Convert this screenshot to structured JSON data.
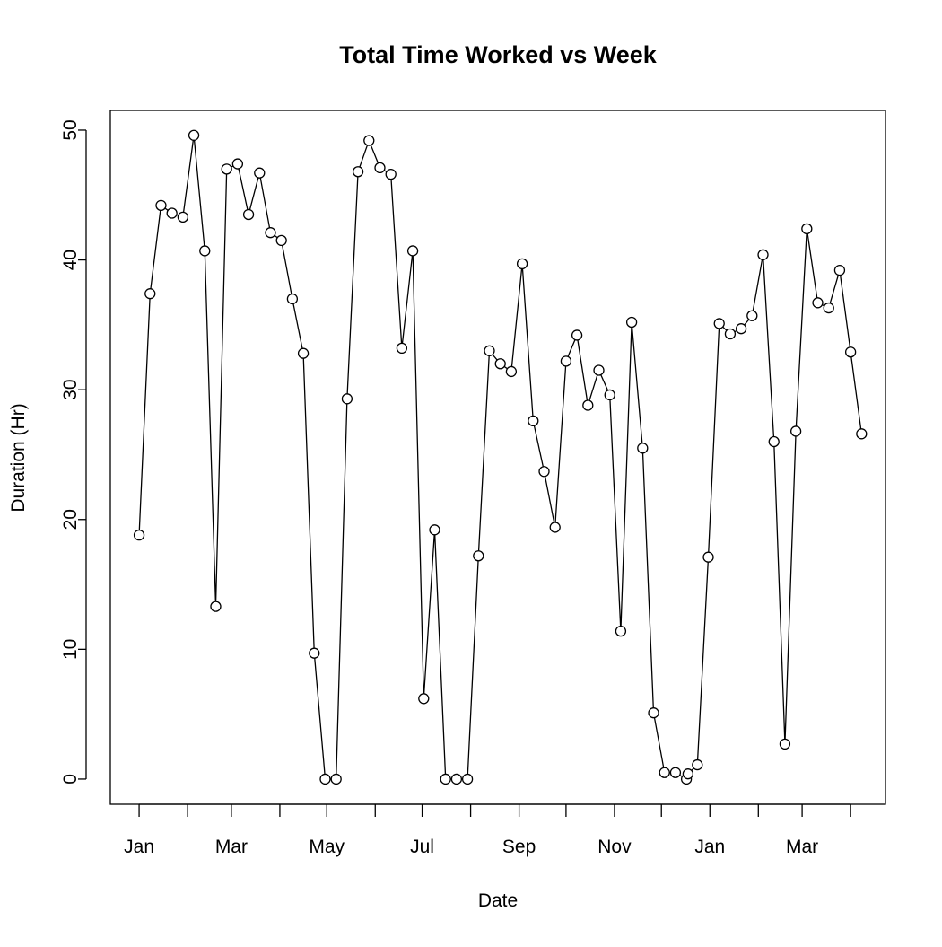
{
  "chart_data": {
    "type": "line",
    "title": "Total Time Worked vs Week",
    "x_label": "Date",
    "y_label": "Duration (Hr)",
    "x": [
      0,
      7,
      14,
      21,
      28,
      35,
      42,
      49,
      56,
      63,
      70,
      77,
      84,
      91,
      98,
      105,
      112,
      119,
      126,
      133,
      140,
      147,
      154,
      161,
      168,
      175,
      182,
      189,
      196,
      203,
      210,
      217,
      224,
      231,
      238,
      245,
      252,
      259,
      266,
      273,
      280,
      287,
      294,
      301,
      308,
      315,
      322,
      329,
      336,
      343,
      350,
      351,
      357,
      364,
      371,
      378,
      385,
      392,
      399,
      406,
      413,
      420,
      427,
      434,
      441,
      448,
      455,
      462
    ],
    "series": [
      {
        "name": "Duration",
        "color": "#000000",
        "values": [
          18.8,
          37.4,
          44.2,
          43.6,
          43.3,
          49.6,
          40.7,
          13.3,
          47.0,
          47.4,
          43.5,
          46.7,
          42.1,
          41.5,
          37.0,
          32.8,
          9.7,
          0,
          0,
          29.3,
          46.8,
          49.2,
          47.1,
          46.6,
          33.2,
          40.7,
          6.2,
          19.2,
          0,
          0,
          0,
          17.2,
          33.0,
          32.0,
          31.4,
          39.7,
          27.6,
          23.7,
          19.4,
          32.2,
          34.2,
          28.8,
          31.5,
          29.6,
          11.4,
          35.2,
          25.5,
          5.1,
          0.5,
          0.5,
          0,
          0.4,
          1.1,
          17.1,
          35.1,
          34.3,
          34.7,
          35.7,
          40.4,
          26.0,
          2.7,
          26.8,
          42.4,
          36.7,
          36.3,
          39.2,
          32.9,
          26.6
        ]
      }
    ],
    "xlim": [
      -18.4,
      477.3
    ],
    "xticks": [
      {
        "value": 0,
        "label": "Jan"
      },
      {
        "value": 31,
        "label": null
      },
      {
        "value": 59,
        "label": "Mar"
      },
      {
        "value": 90,
        "label": null
      },
      {
        "value": 120,
        "label": "May"
      },
      {
        "value": 151,
        "label": null
      },
      {
        "value": 181,
        "label": "Jul"
      },
      {
        "value": 212,
        "label": null
      },
      {
        "value": 243,
        "label": "Sep"
      },
      {
        "value": 273,
        "label": null
      },
      {
        "value": 304,
        "label": "Nov"
      },
      {
        "value": 334,
        "label": null
      },
      {
        "value": 365,
        "label": "Jan"
      },
      {
        "value": 396,
        "label": null
      },
      {
        "value": 424,
        "label": "Mar"
      },
      {
        "value": 455,
        "label": null
      }
    ],
    "ylim": [
      -1.94,
      51.52
    ],
    "yticks": [
      0,
      10,
      20,
      30,
      40,
      50
    ],
    "grid": false
  }
}
